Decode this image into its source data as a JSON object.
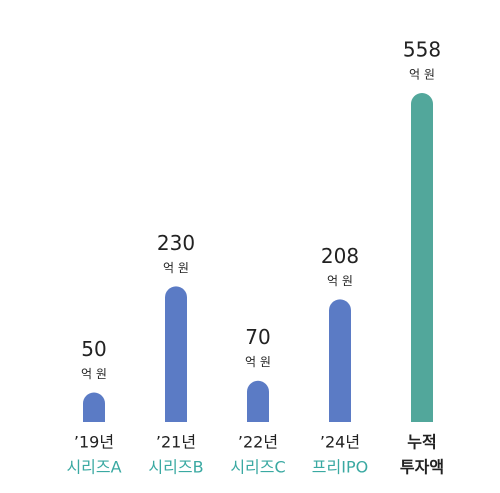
{
  "chart_data": {
    "type": "bar",
    "categories": [
      [
        "’19년",
        "시리즈A"
      ],
      [
        "’21년",
        "시리즈B"
      ],
      [
        "’22년",
        "시리즈C"
      ],
      [
        "’24년",
        "프리IPO"
      ],
      [
        "누적",
        "투자액"
      ]
    ],
    "values": [
      50,
      230,
      70,
      208,
      558
    ],
    "unit": "억 원",
    "colors": [
      "#5b7bc5",
      "#5b7bc5",
      "#5b7bc5",
      "#5b7bc5",
      "#52a79b"
    ],
    "label_colors": [
      "#3aa9a2",
      "#3aa9a2",
      "#3aa9a2",
      "#3aa9a2",
      "#222222"
    ]
  }
}
